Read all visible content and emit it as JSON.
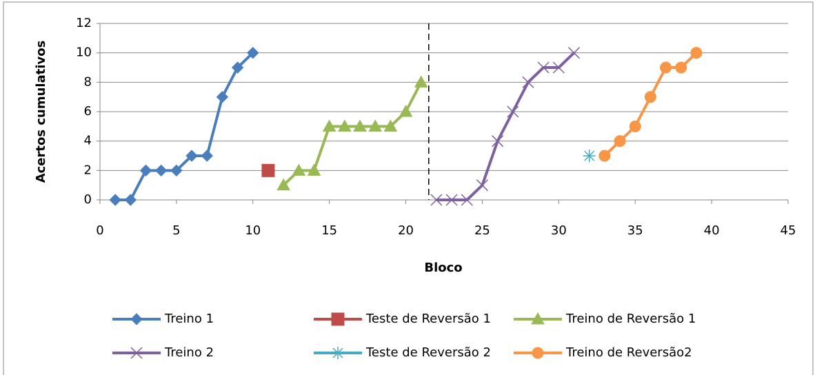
{
  "chart_data": {
    "type": "line",
    "xlabel": "Bloco",
    "ylabel": "Acertos cumulativos",
    "xlim": [
      0,
      45
    ],
    "xticks": [
      0,
      5,
      10,
      15,
      20,
      25,
      30,
      35,
      40,
      45
    ],
    "ylim": [
      0,
      12
    ],
    "yticks": [
      0,
      2,
      4,
      6,
      8,
      10,
      12
    ],
    "grid": true,
    "legend": "bottom",
    "vline_x": 21.5,
    "series": [
      {
        "name": "Treino 1",
        "color": "#4a7ebb",
        "marker": "diamond",
        "x": [
          1,
          2,
          3,
          4,
          5,
          6,
          7,
          8,
          9,
          10
        ],
        "values": [
          0,
          0,
          2,
          2,
          2,
          3,
          3,
          7,
          9,
          10
        ]
      },
      {
        "name": "Teste de Reversão 1",
        "color": "#be4b48",
        "marker": "square",
        "x": [
          11
        ],
        "values": [
          2
        ]
      },
      {
        "name": "Treino de Reversão 1",
        "color": "#98b954",
        "marker": "triangle",
        "x": [
          12,
          13,
          14,
          15,
          16,
          17,
          18,
          19,
          20,
          21
        ],
        "values": [
          1,
          2,
          2,
          5,
          5,
          5,
          5,
          5,
          6,
          8
        ]
      },
      {
        "name": "Treino 2",
        "color": "#7d60a0",
        "marker": "x",
        "x": [
          22,
          23,
          24,
          25,
          26,
          27,
          28,
          29,
          30,
          31
        ],
        "values": [
          0,
          0,
          0,
          1,
          4,
          6,
          8,
          9,
          9,
          10
        ]
      },
      {
        "name": "Teste de Reversão 2",
        "color": "#46aac5",
        "marker": "asterisk",
        "x": [
          32
        ],
        "values": [
          3
        ]
      },
      {
        "name": "Treino de Reversão2",
        "color": "#f79646",
        "marker": "circle",
        "x": [
          33,
          34,
          35,
          36,
          37,
          38,
          39
        ],
        "values": [
          3,
          4,
          5,
          7,
          9,
          9,
          10
        ]
      }
    ]
  }
}
